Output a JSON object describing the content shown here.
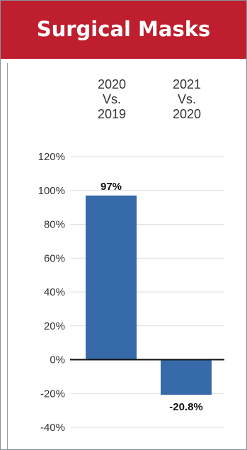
{
  "title": "Surgical Masks",
  "colors": {
    "header_bg": "#be1e2d",
    "bar": "#376aa9",
    "zero_line": "#111111",
    "grid": "#d9dcdf"
  },
  "chart_data": {
    "type": "bar",
    "categories": [
      "2020\nVs.\n2019",
      "2021\nVs.\n2020"
    ],
    "category_lines": [
      [
        "2020",
        "Vs.",
        "2019"
      ],
      [
        "2021",
        "Vs.",
        "2020"
      ]
    ],
    "values": [
      97,
      -20.8
    ],
    "data_labels": [
      "97%",
      "-20.8%"
    ],
    "ylim": [
      -40,
      120
    ],
    "y_ticks": [
      120,
      100,
      80,
      60,
      40,
      20,
      0,
      -20,
      -40
    ],
    "y_tick_labels": [
      "120%",
      "100%",
      "80%",
      "60%",
      "40%",
      "20%",
      "0%",
      "-20%",
      "-40%"
    ],
    "grid": true,
    "legend": "none",
    "xlabel": "",
    "ylabel": ""
  }
}
